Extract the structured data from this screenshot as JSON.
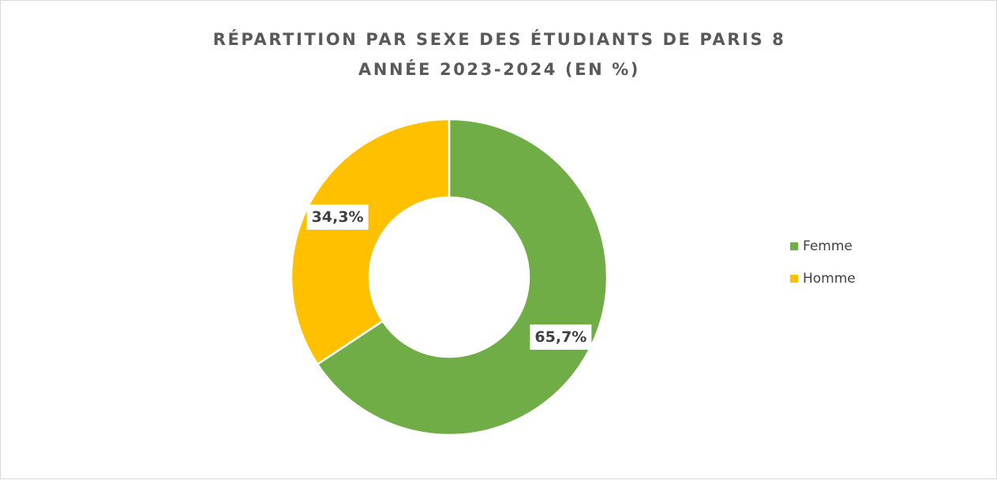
{
  "chart_data": {
    "type": "pie",
    "subtype": "donut",
    "title_lines": [
      "RÉPARTITION PAR SEXE DES ÉTUDIANTS DE PARIS 8",
      "ANNÉE 2023-2024 (EN %)"
    ],
    "categories": [
      "Femme",
      "Homme"
    ],
    "values": [
      65.7,
      34.3
    ],
    "data_labels": [
      "65,7%",
      "34,3%"
    ],
    "colors": [
      "#70AD47",
      "#FFC000"
    ],
    "legend_position": "right"
  }
}
